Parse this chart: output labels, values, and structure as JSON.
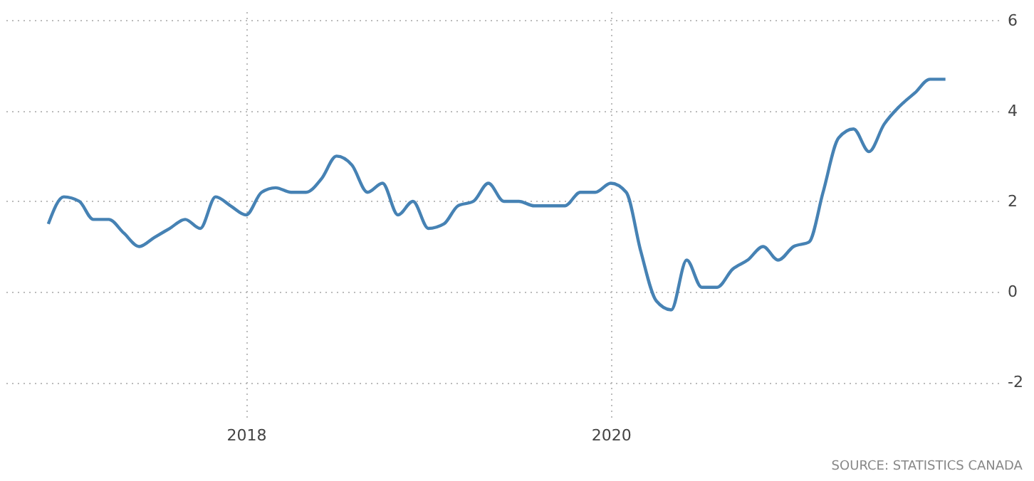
{
  "chart_data": {
    "type": "line",
    "x": [
      "2016-12",
      "2017-01",
      "2017-02",
      "2017-03",
      "2017-04",
      "2017-05",
      "2017-06",
      "2017-07",
      "2017-08",
      "2017-09",
      "2017-10",
      "2017-11",
      "2017-12",
      "2018-01",
      "2018-02",
      "2018-03",
      "2018-04",
      "2018-05",
      "2018-06",
      "2018-07",
      "2018-08",
      "2018-09",
      "2018-10",
      "2018-11",
      "2018-12",
      "2019-01",
      "2019-02",
      "2019-03",
      "2019-04",
      "2019-05",
      "2019-06",
      "2019-07",
      "2019-08",
      "2019-09",
      "2019-10",
      "2019-11",
      "2019-12",
      "2020-01",
      "2020-02",
      "2020-03",
      "2020-04",
      "2020-05",
      "2020-06",
      "2020-07",
      "2020-08",
      "2020-09",
      "2020-10",
      "2020-11",
      "2020-12",
      "2021-01",
      "2021-02",
      "2021-03",
      "2021-04",
      "2021-05",
      "2021-06",
      "2021-07",
      "2021-08",
      "2021-09",
      "2021-10",
      "2021-11"
    ],
    "series": [
      {
        "color": "#4682b4",
        "values": [
          1.5,
          2.1,
          2.0,
          1.6,
          1.6,
          1.3,
          1.0,
          1.2,
          1.4,
          1.6,
          1.4,
          2.1,
          1.9,
          1.7,
          2.2,
          2.3,
          2.2,
          2.2,
          2.5,
          3.0,
          2.8,
          2.2,
          2.4,
          1.7,
          2.0,
          1.4,
          1.5,
          1.9,
          2.0,
          2.4,
          2.0,
          2.0,
          1.9,
          1.9,
          1.9,
          2.2,
          2.2,
          2.4,
          2.2,
          0.9,
          -0.2,
          -0.4,
          0.7,
          0.1,
          0.1,
          0.5,
          0.7,
          1.0,
          0.7,
          1.0,
          1.1,
          2.2,
          3.4,
          3.6,
          3.1,
          3.7,
          4.1,
          4.4,
          4.7,
          4.7
        ]
      }
    ],
    "xlim": [
      "2016-09-01",
      "2022-02-15"
    ],
    "xticks": [
      {
        "value": "2018-01-01",
        "label": "2018"
      },
      {
        "value": "2020-01-01",
        "label": "2020"
      }
    ],
    "ylim": [
      -2.8,
      6.2
    ],
    "yticks": [
      -2,
      0,
      2,
      4,
      6
    ],
    "grid": true,
    "line_style": "solid",
    "marker": "none",
    "legend": false,
    "annotations": [
      "SOURCE: STATISTICS CANADA"
    ]
  }
}
